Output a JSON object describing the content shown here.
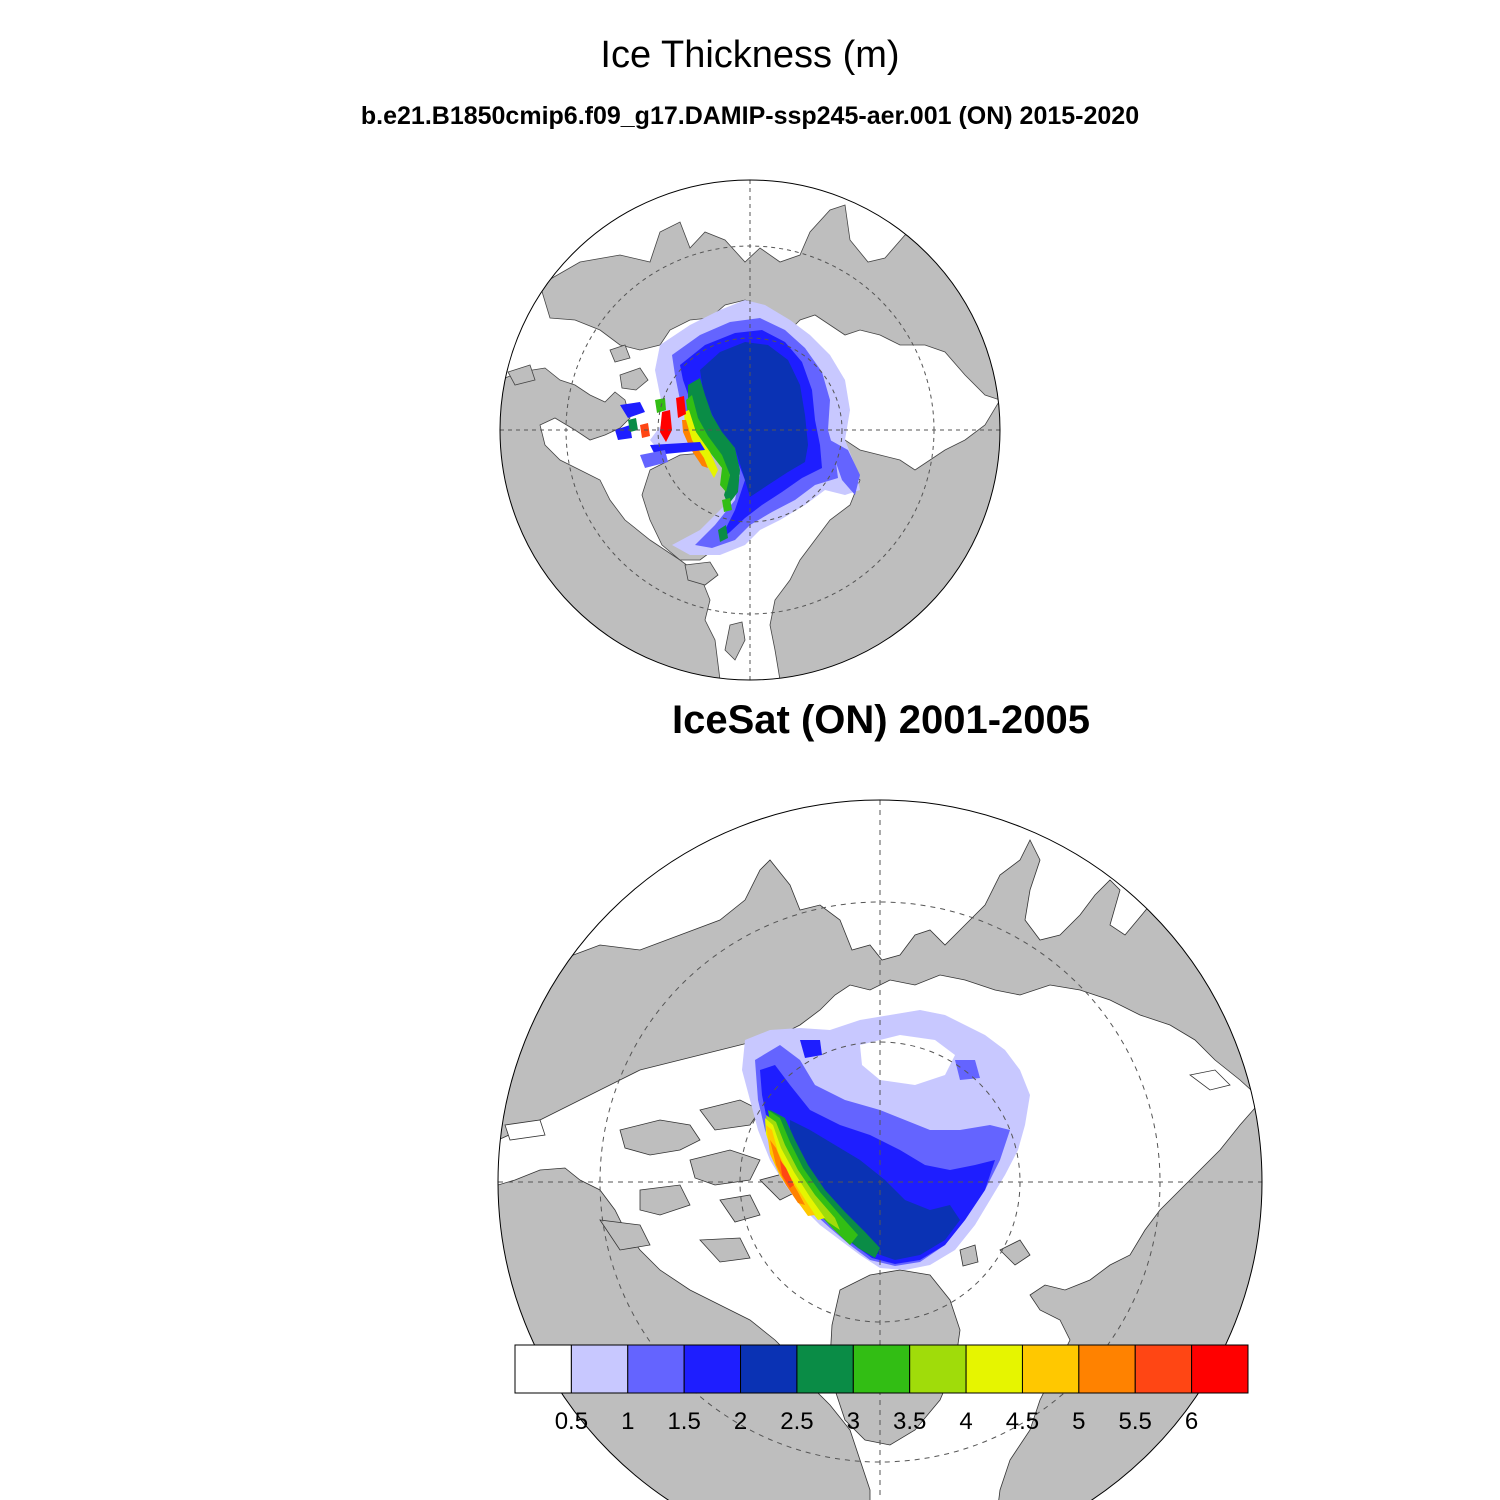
{
  "header": {
    "title": "Ice Thickness (m)",
    "subtitle": "b.e21.B1850cmip6.f09_g17.DAMIP-ssp245-aer.001 (ON) 2015-2020"
  },
  "panels": [
    {
      "name": "model",
      "label": ""
    },
    {
      "name": "observation",
      "label": "IceSat (ON) 2001-2005"
    }
  ],
  "colors": {
    "land": "#bebebe",
    "ocean": "#ffffff",
    "grid": "#555555"
  },
  "colorbar": {
    "levels": [
      "0.5",
      "1",
      "1.5",
      "2",
      "2.5",
      "3",
      "3.5",
      "4",
      "4.5",
      "5",
      "5.5",
      "6"
    ],
    "colors": [
      "#ffffff",
      "#c8c8ff",
      "#6464ff",
      "#1e1eff",
      "#0a32b4",
      "#0a8c46",
      "#32be14",
      "#a0dc0a",
      "#e6f500",
      "#ffc800",
      "#ff8200",
      "#ff4614",
      "#ff0000"
    ]
  }
}
